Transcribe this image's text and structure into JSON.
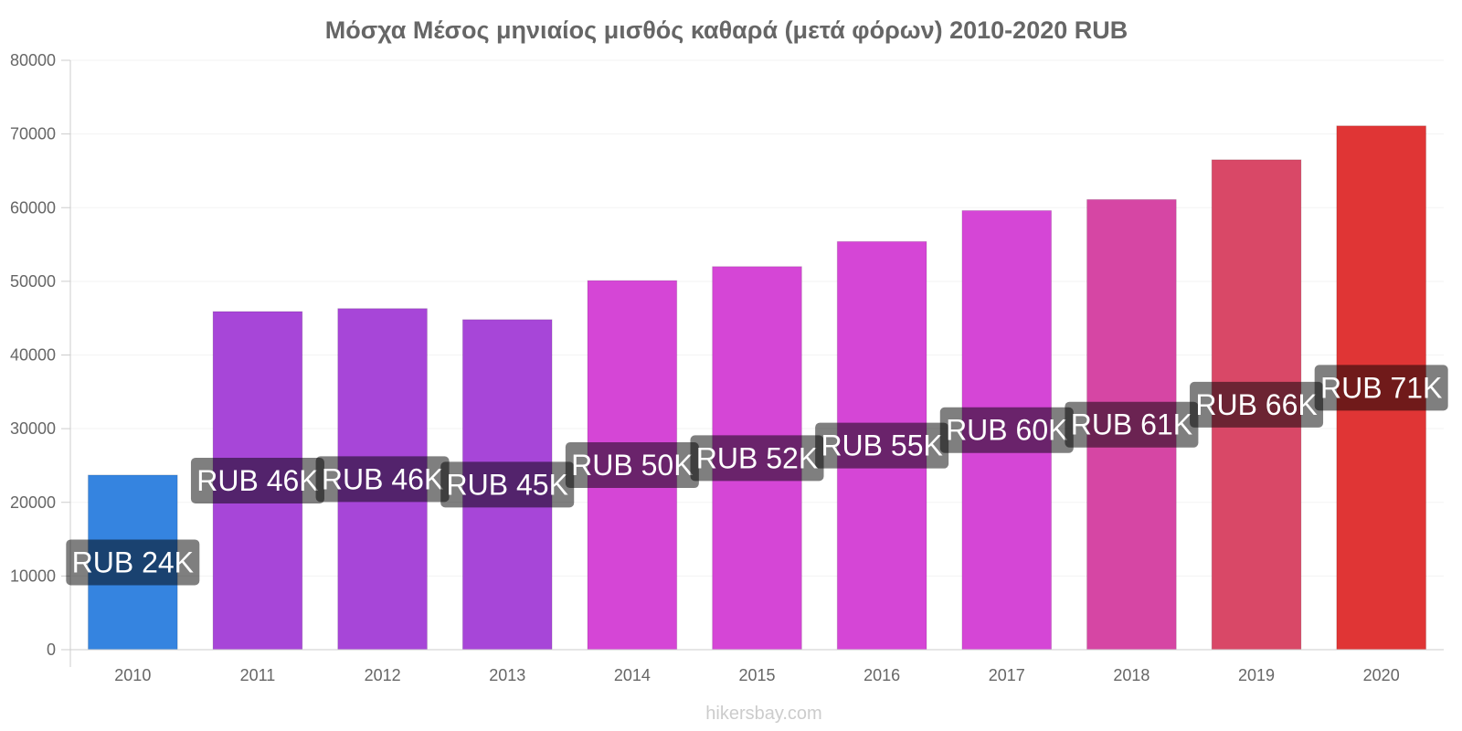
{
  "chart_data": {
    "type": "bar",
    "title": "Μόσχα Μέσος μηνιαίος μισθός καθαρά (μετά φόρων) 2010-2020 RUB",
    "categories": [
      "2010",
      "2011",
      "2012",
      "2013",
      "2014",
      "2015",
      "2016",
      "2017",
      "2018",
      "2019",
      "2020"
    ],
    "values": [
      23700,
      45900,
      46300,
      44800,
      50100,
      52000,
      55400,
      59600,
      61100,
      66500,
      71100
    ],
    "data_labels": [
      "RUB 24K",
      "RUB 46K",
      "RUB 46K",
      "RUB 45K",
      "RUB 50K",
      "RUB 52K",
      "RUB 55K",
      "RUB 60K",
      "RUB 61K",
      "RUB 66K",
      "RUB 71K"
    ],
    "bar_colors": [
      "#3584e0",
      "#a746d8",
      "#a746d8",
      "#a746d8",
      "#d546d6",
      "#d546d6",
      "#d546d6",
      "#d546d6",
      "#d646a4",
      "#d94867",
      "#e03535"
    ],
    "ylim": [
      0,
      80000
    ],
    "yticks": [
      "0",
      "10000",
      "20000",
      "30000",
      "40000",
      "50000",
      "60000",
      "70000",
      "80000"
    ],
    "xlabel": "",
    "ylabel": "",
    "grid": true,
    "legend": "none"
  },
  "watermark": "hikersbay.com"
}
